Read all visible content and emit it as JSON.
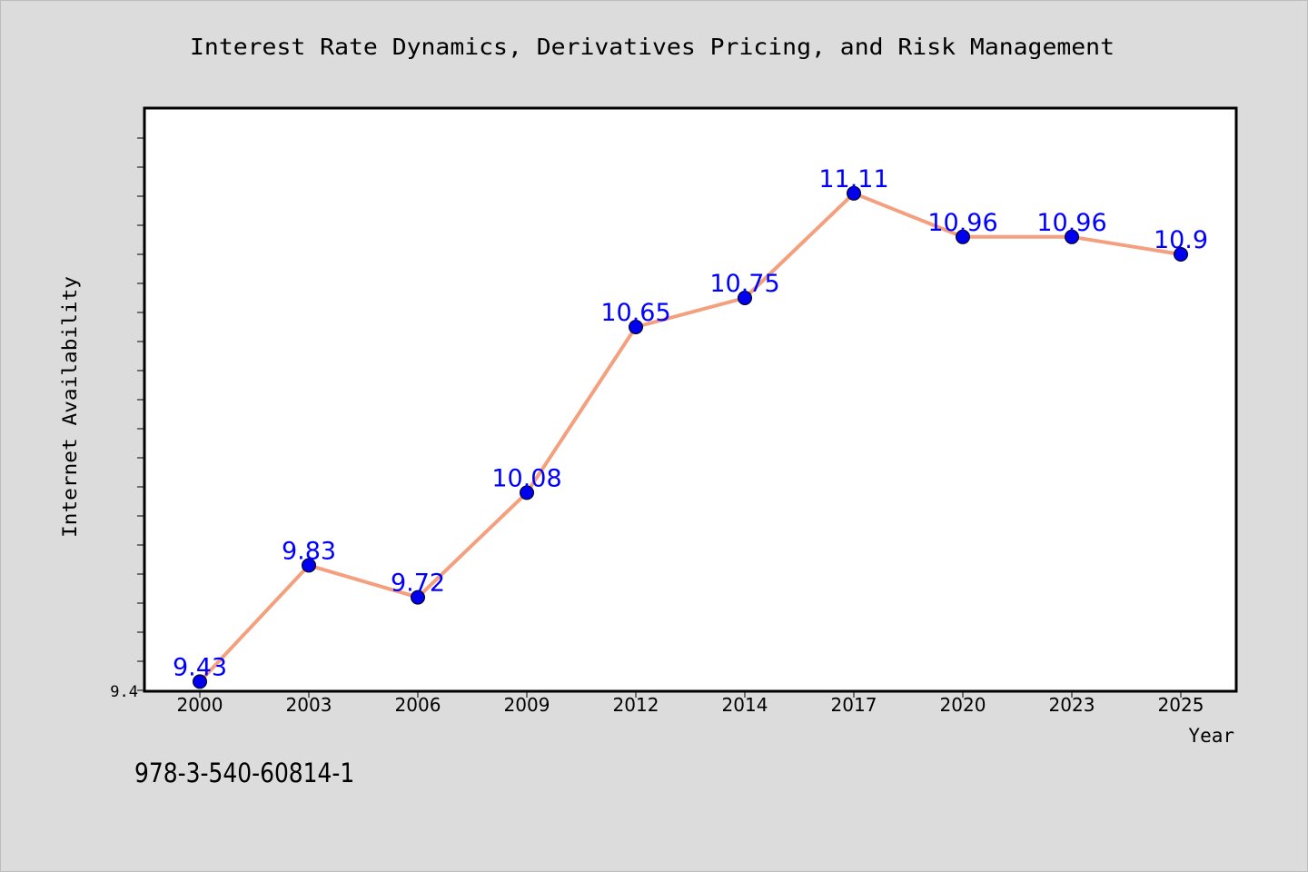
{
  "chart_data": {
    "type": "line",
    "title": "Interest Rate Dynamics, Derivatives Pricing, and Risk Management",
    "xlabel": "Year",
    "ylabel": "Internet Availability",
    "categories": [
      "2000",
      "2003",
      "2006",
      "2009",
      "2012",
      "2014",
      "2017",
      "2020",
      "2023",
      "2025"
    ],
    "values": [
      9.43,
      9.83,
      9.72,
      10.08,
      10.65,
      10.75,
      11.11,
      10.96,
      10.96,
      10.9
    ],
    "data_labels": [
      "9.43",
      "9.83",
      "9.72",
      "10.08",
      "10.65",
      "10.75",
      "11.11",
      "10.96",
      "10.96",
      "10.9"
    ],
    "ylim": [
      9.4,
      11.4
    ],
    "y_tick_labels": [
      "9.4"
    ],
    "grid": false,
    "line_color": "#f4a07e",
    "marker_color": "#0000ee",
    "label_color": "#0000ff",
    "plot_background": "#ffffff",
    "page_background": "#dcdcdc"
  },
  "footer": {
    "isbn": "978-3-540-60814-1"
  }
}
